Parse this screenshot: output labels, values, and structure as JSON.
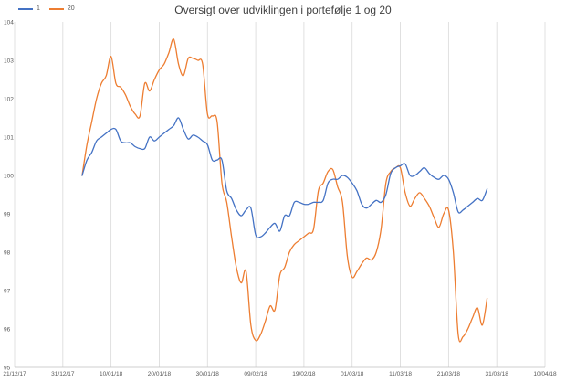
{
  "chart_data": {
    "type": "line",
    "title": "Oversigt over udviklingen i portefølje 1 og 20",
    "xlabel": "",
    "ylabel": "",
    "x_ticks": [
      "21/12/17",
      "31/12/17",
      "10/01/18",
      "20/01/18",
      "30/01/18",
      "09/02/18",
      "19/02/18",
      "01/03/18",
      "11/03/18",
      "21/03/18",
      "31/03/18",
      "10/04/18"
    ],
    "y_ticks": [
      95,
      96,
      97,
      98,
      99,
      100,
      101,
      102,
      103,
      104
    ],
    "ylim": [
      95,
      104
    ],
    "legend_position": "top-left",
    "grid": "vertical",
    "series": [
      {
        "name": "1",
        "color": "#4472C4",
        "x": [
          "2018-01-04",
          "2018-01-05",
          "2018-01-06",
          "2018-01-07",
          "2018-01-08",
          "2018-01-09",
          "2018-01-10",
          "2018-01-11",
          "2018-01-12",
          "2018-01-13",
          "2018-01-14",
          "2018-01-15",
          "2018-01-16",
          "2018-01-17",
          "2018-01-18",
          "2018-01-19",
          "2018-01-20",
          "2018-01-21",
          "2018-01-22",
          "2018-01-23",
          "2018-01-24",
          "2018-01-25",
          "2018-01-26",
          "2018-01-27",
          "2018-01-28",
          "2018-01-29",
          "2018-01-30",
          "2018-01-31",
          "2018-02-01",
          "2018-02-02",
          "2018-02-03",
          "2018-02-04",
          "2018-02-05",
          "2018-02-06",
          "2018-02-07",
          "2018-02-08",
          "2018-02-09",
          "2018-02-10",
          "2018-02-11",
          "2018-02-12",
          "2018-02-13",
          "2018-02-14",
          "2018-02-15",
          "2018-02-16",
          "2018-02-17",
          "2018-02-18",
          "2018-02-19",
          "2018-02-20",
          "2018-02-21",
          "2018-02-22",
          "2018-02-23",
          "2018-02-24",
          "2018-02-25",
          "2018-02-26",
          "2018-02-27",
          "2018-02-28",
          "2018-03-01",
          "2018-03-02",
          "2018-03-03",
          "2018-03-04",
          "2018-03-05",
          "2018-03-06",
          "2018-03-07",
          "2018-03-08",
          "2018-03-09",
          "2018-03-10",
          "2018-03-11",
          "2018-03-12",
          "2018-03-13",
          "2018-03-14",
          "2018-03-15",
          "2018-03-16",
          "2018-03-17",
          "2018-03-18",
          "2018-03-19",
          "2018-03-20",
          "2018-03-21",
          "2018-03-22",
          "2018-03-23",
          "2018-03-24",
          "2018-03-25",
          "2018-03-26",
          "2018-03-27",
          "2018-03-28",
          "2018-03-29"
        ],
        "y": [
          100.0,
          100.4,
          100.6,
          100.9,
          101.0,
          101.1,
          101.2,
          101.2,
          100.9,
          100.85,
          100.85,
          100.75,
          100.7,
          100.7,
          101.0,
          100.9,
          101.0,
          101.1,
          101.2,
          101.3,
          101.5,
          101.2,
          100.95,
          101.05,
          101.0,
          100.9,
          100.8,
          100.4,
          100.4,
          100.4,
          99.6,
          99.4,
          99.1,
          98.95,
          99.1,
          99.15,
          98.45,
          98.4,
          98.5,
          98.65,
          98.75,
          98.55,
          98.95,
          98.95,
          99.3,
          99.3,
          99.25,
          99.25,
          99.3,
          99.3,
          99.35,
          99.8,
          99.9,
          99.9,
          100.0,
          99.95,
          99.8,
          99.6,
          99.25,
          99.15,
          99.25,
          99.35,
          99.3,
          99.5,
          100.05,
          100.2,
          100.25,
          100.3,
          100.0,
          100.0,
          100.1,
          100.2,
          100.05,
          99.95,
          99.9,
          100.0,
          99.9,
          99.55,
          99.05,
          99.1,
          99.2,
          99.3,
          99.4,
          99.35,
          99.65
        ]
      },
      {
        "name": "20",
        "color": "#ED7D31",
        "x": [
          "2018-01-04",
          "2018-01-05",
          "2018-01-06",
          "2018-01-07",
          "2018-01-08",
          "2018-01-09",
          "2018-01-10",
          "2018-01-11",
          "2018-01-12",
          "2018-01-13",
          "2018-01-14",
          "2018-01-15",
          "2018-01-16",
          "2018-01-17",
          "2018-01-18",
          "2018-01-19",
          "2018-01-20",
          "2018-01-21",
          "2018-01-22",
          "2018-01-23",
          "2018-01-24",
          "2018-01-25",
          "2018-01-26",
          "2018-01-27",
          "2018-01-28",
          "2018-01-29",
          "2018-01-30",
          "2018-01-31",
          "2018-02-01",
          "2018-02-02",
          "2018-02-03",
          "2018-02-04",
          "2018-02-05",
          "2018-02-06",
          "2018-02-07",
          "2018-02-08",
          "2018-02-09",
          "2018-02-10",
          "2018-02-11",
          "2018-02-12",
          "2018-02-13",
          "2018-02-14",
          "2018-02-15",
          "2018-02-16",
          "2018-02-17",
          "2018-02-18",
          "2018-02-19",
          "2018-02-20",
          "2018-02-21",
          "2018-02-22",
          "2018-02-23",
          "2018-02-24",
          "2018-02-25",
          "2018-02-26",
          "2018-02-27",
          "2018-02-28",
          "2018-03-01",
          "2018-03-02",
          "2018-03-03",
          "2018-03-04",
          "2018-03-05",
          "2018-03-06",
          "2018-03-07",
          "2018-03-08",
          "2018-03-09",
          "2018-03-10",
          "2018-03-11",
          "2018-03-12",
          "2018-03-13",
          "2018-03-14",
          "2018-03-15",
          "2018-03-16",
          "2018-03-17",
          "2018-03-18",
          "2018-03-19",
          "2018-03-20",
          "2018-03-21",
          "2018-03-22",
          "2018-03-23",
          "2018-03-24",
          "2018-03-25",
          "2018-03-26",
          "2018-03-27",
          "2018-03-28",
          "2018-03-29"
        ],
        "y": [
          100.0,
          100.8,
          101.4,
          102.0,
          102.4,
          102.6,
          103.1,
          102.4,
          102.3,
          102.1,
          101.8,
          101.6,
          101.55,
          102.4,
          102.2,
          102.5,
          102.75,
          102.9,
          103.2,
          103.55,
          102.9,
          102.6,
          103.05,
          103.05,
          103.0,
          102.9,
          101.6,
          101.55,
          101.4,
          99.8,
          99.3,
          98.4,
          97.6,
          97.2,
          97.5,
          96.1,
          95.7,
          95.85,
          96.2,
          96.6,
          96.5,
          97.4,
          97.6,
          98.0,
          98.2,
          98.3,
          98.4,
          98.5,
          98.6,
          99.6,
          99.8,
          100.1,
          100.15,
          99.7,
          99.3,
          97.9,
          97.35,
          97.5,
          97.7,
          97.85,
          97.8,
          98.0,
          98.6,
          99.8,
          100.1,
          100.2,
          100.2,
          99.55,
          99.2,
          99.4,
          99.55,
          99.4,
          99.2,
          98.9,
          98.65,
          99.0,
          99.1,
          98.0,
          95.85,
          95.8,
          96.0,
          96.3,
          96.55,
          96.1,
          96.8
        ]
      }
    ]
  }
}
